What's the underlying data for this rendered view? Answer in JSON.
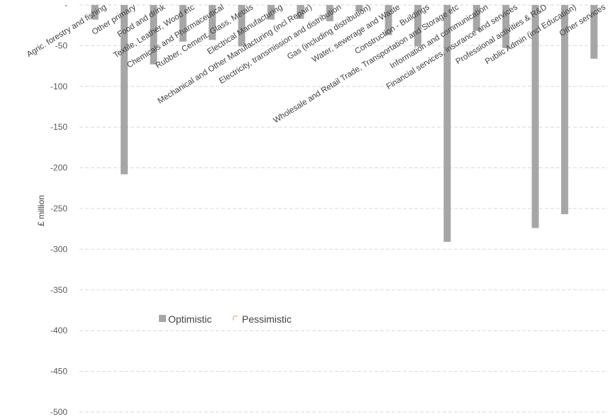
{
  "chart_data": {
    "type": "bar",
    "title": "",
    "xlabel": "",
    "ylabel": "£ million",
    "ylim": [
      -500,
      0
    ],
    "y_ticks": [
      "-",
      "-50",
      "-100",
      "-150",
      "-200",
      "-250",
      "-300",
      "-350",
      "-400",
      "-450",
      "-500"
    ],
    "grid": true,
    "legend_position": "lower-left",
    "categories": [
      "Agric. forestry and fishing",
      "Other primary",
      "Food and drink",
      "Textile, Leather, Wood etc",
      "Chemicals and Pharmaceutical",
      "Rubber, Cement, Glass, Metals",
      "Electrical Manufacturing",
      "Mechanical and Other Manufacturing (incl Repair)",
      "Electricity, transmission and distribution",
      "Gas (including distribution)",
      "Water, sewerage and Waste",
      "Construction - Buildings",
      "Wholesale and Retail Trade, Transportation and Storage etc",
      "Information and communication",
      "Financial services, insurance and services",
      "Professional activities & R&D",
      "Public Admin (incl Education)",
      "Other services"
    ],
    "series": [
      {
        "name": "Optimistic",
        "color": "#a6a6a6",
        "values": [
          -18,
          -208,
          -73,
          -45,
          -43,
          -51,
          -18,
          -17,
          -20,
          -8,
          -37,
          -51,
          -291,
          -32,
          -53,
          -274,
          -257,
          -66
        ]
      },
      {
        "name": "Pessimistic",
        "color": "#e8b89a",
        "values": [
          0,
          0,
          0,
          0,
          0,
          0,
          0,
          0,
          0,
          0,
          0,
          0,
          0,
          0,
          0,
          0,
          0,
          0
        ]
      }
    ]
  }
}
